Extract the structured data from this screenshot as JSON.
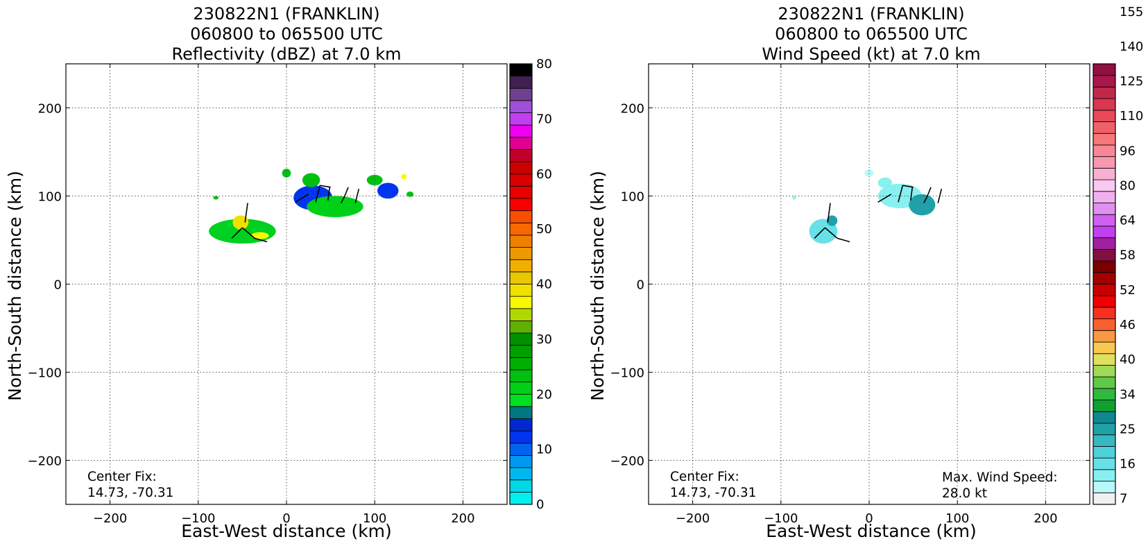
{
  "chart_data": [
    {
      "type": "heatmap",
      "title_lines": [
        "230822N1 (FRANKLIN)",
        "060800 to 065500 UTC",
        "Reflectivity (dBZ) at 7.0 km"
      ],
      "xlabel": "East-West distance (km)",
      "ylabel": "North-South distance (km)",
      "xlim": [
        -250,
        250
      ],
      "ylim": [
        -250,
        250
      ],
      "xticks": [
        -200,
        -100,
        0,
        100,
        200
      ],
      "yticks": [
        -200,
        -100,
        0,
        100,
        200
      ],
      "grid": true,
      "center_fix": {
        "label": "Center Fix:",
        "value": "14.73, -70.31"
      },
      "colorbar": {
        "min": 0,
        "max": 80,
        "ticks": [
          0,
          10,
          20,
          30,
          40,
          50,
          60,
          70,
          80
        ],
        "colors": [
          "#00f0f0",
          "#00d8e8",
          "#00b8f0",
          "#0098f0",
          "#0064f0",
          "#0034f0",
          "#0028d0",
          "#007880",
          "#00e020",
          "#00d018",
          "#00c010",
          "#00b000",
          "#00a000",
          "#009000",
          "#60b000",
          "#b0d800",
          "#f8f800",
          "#f0e000",
          "#e8c800",
          "#f0b000",
          "#f09800",
          "#f08000",
          "#f86800",
          "#f85000",
          "#f80000",
          "#e80000",
          "#d80000",
          "#c80000",
          "#c00028",
          "#e00090",
          "#f000f0",
          "#c040f0",
          "#a050d8",
          "#704090",
          "#402050",
          "#000000"
        ]
      },
      "data_regions": [
        {
          "center": [
            -50,
            60
          ],
          "rx": 38,
          "ry": 14,
          "color": "#00d020",
          "value": 24
        },
        {
          "center": [
            -52,
            70
          ],
          "rx": 9,
          "ry": 8,
          "color": "#f0e000",
          "value": 38
        },
        {
          "center": [
            -30,
            55
          ],
          "rx": 10,
          "ry": 4,
          "color": "#f8f800",
          "value": 36
        },
        {
          "center": [
            30,
            98
          ],
          "rx": 22,
          "ry": 14,
          "color": "#0034f0",
          "value": 11
        },
        {
          "center": [
            55,
            88
          ],
          "rx": 32,
          "ry": 12,
          "color": "#00d018",
          "value": 23
        },
        {
          "center": [
            115,
            106
          ],
          "rx": 12,
          "ry": 9,
          "color": "#0034f0",
          "value": 11
        },
        {
          "center": [
            100,
            118
          ],
          "rx": 9,
          "ry": 6,
          "color": "#00c010",
          "value": 24
        },
        {
          "center": [
            28,
            118
          ],
          "rx": 10,
          "ry": 8,
          "color": "#00c010",
          "value": 24
        },
        {
          "center": [
            0,
            126
          ],
          "rx": 5,
          "ry": 5,
          "color": "#00c010",
          "value": 24
        },
        {
          "center": [
            -80,
            98
          ],
          "rx": 3,
          "ry": 2,
          "color": "#00c010",
          "value": 24
        },
        {
          "center": [
            140,
            102
          ],
          "rx": 4,
          "ry": 3,
          "color": "#00c010",
          "value": 24
        },
        {
          "center": [
            133,
            122
          ],
          "rx": 3,
          "ry": 3,
          "color": "#f8f800",
          "value": 36
        }
      ]
    },
    {
      "type": "heatmap",
      "title_lines": [
        "230822N1 (FRANKLIN)",
        "060800 to 065500 UTC",
        "Wind Speed (kt) at 7.0 km"
      ],
      "xlabel": "East-West distance (km)",
      "ylabel": "North-South distance (km)",
      "xlim": [
        -250,
        250
      ],
      "ylim": [
        -250,
        250
      ],
      "xticks": [
        -200,
        -100,
        0,
        100,
        200
      ],
      "yticks": [
        -200,
        -100,
        0,
        100,
        200
      ],
      "grid": true,
      "center_fix": {
        "label": "Center Fix:",
        "value": "14.73, -70.31"
      },
      "max_wind": {
        "label": "Max. Wind Speed:",
        "value": "28.0 kt"
      },
      "colorbar": {
        "tick_labels": [
          "7",
          "16",
          "25",
          "34",
          "40",
          "46",
          "52",
          "58",
          "64",
          "80",
          "96",
          "110",
          "125",
          "140",
          "155"
        ],
        "tick_levels": [
          0,
          3,
          6,
          9,
          12,
          15,
          18,
          21,
          24,
          27,
          30,
          33,
          36,
          39,
          42
        ],
        "colors": [
          "#f0f0f0",
          "#b8f8f8",
          "#88f0f0",
          "#68e0e8",
          "#50d0d8",
          "#38b8c0",
          "#20a0a8",
          "#108890",
          "#10a030",
          "#30b840",
          "#60c848",
          "#a0d858",
          "#e0e060",
          "#f8c850",
          "#f89840",
          "#f86030",
          "#f83020",
          "#f00000",
          "#c80000",
          "#a00000",
          "#780000",
          "#801040",
          "#a020a0",
          "#c040f0",
          "#d060f0",
          "#e090f0",
          "#f0b0f0",
          "#f8c8f0",
          "#f8b0d0",
          "#f898b0",
          "#f88898",
          "#f87878",
          "#f06068",
          "#e84858",
          "#d83850",
          "#c02848",
          "#a81848",
          "#901040"
        ]
      },
      "data_regions": [
        {
          "center": [
            -52,
            60
          ],
          "rx": 16,
          "ry": 14,
          "color": "#68e0e8",
          "value": 18
        },
        {
          "center": [
            -42,
            72
          ],
          "rx": 6,
          "ry": 6,
          "color": "#20a0a8",
          "value": 24
        },
        {
          "center": [
            35,
            100
          ],
          "rx": 25,
          "ry": 14,
          "color": "#88f0f0",
          "value": 14
        },
        {
          "center": [
            60,
            90
          ],
          "rx": 15,
          "ry": 12,
          "color": "#20a0a8",
          "value": 25
        },
        {
          "center": [
            18,
            115
          ],
          "rx": 8,
          "ry": 6,
          "color": "#88f0f0",
          "value": 14
        },
        {
          "center": [
            -85,
            98
          ],
          "rx": 2,
          "ry": 2,
          "color": "#88f0f0",
          "value": 14
        },
        {
          "center": [
            0,
            126
          ],
          "rx": 5,
          "ry": 4,
          "color": "#b8f8f8",
          "value": 10
        }
      ]
    }
  ]
}
